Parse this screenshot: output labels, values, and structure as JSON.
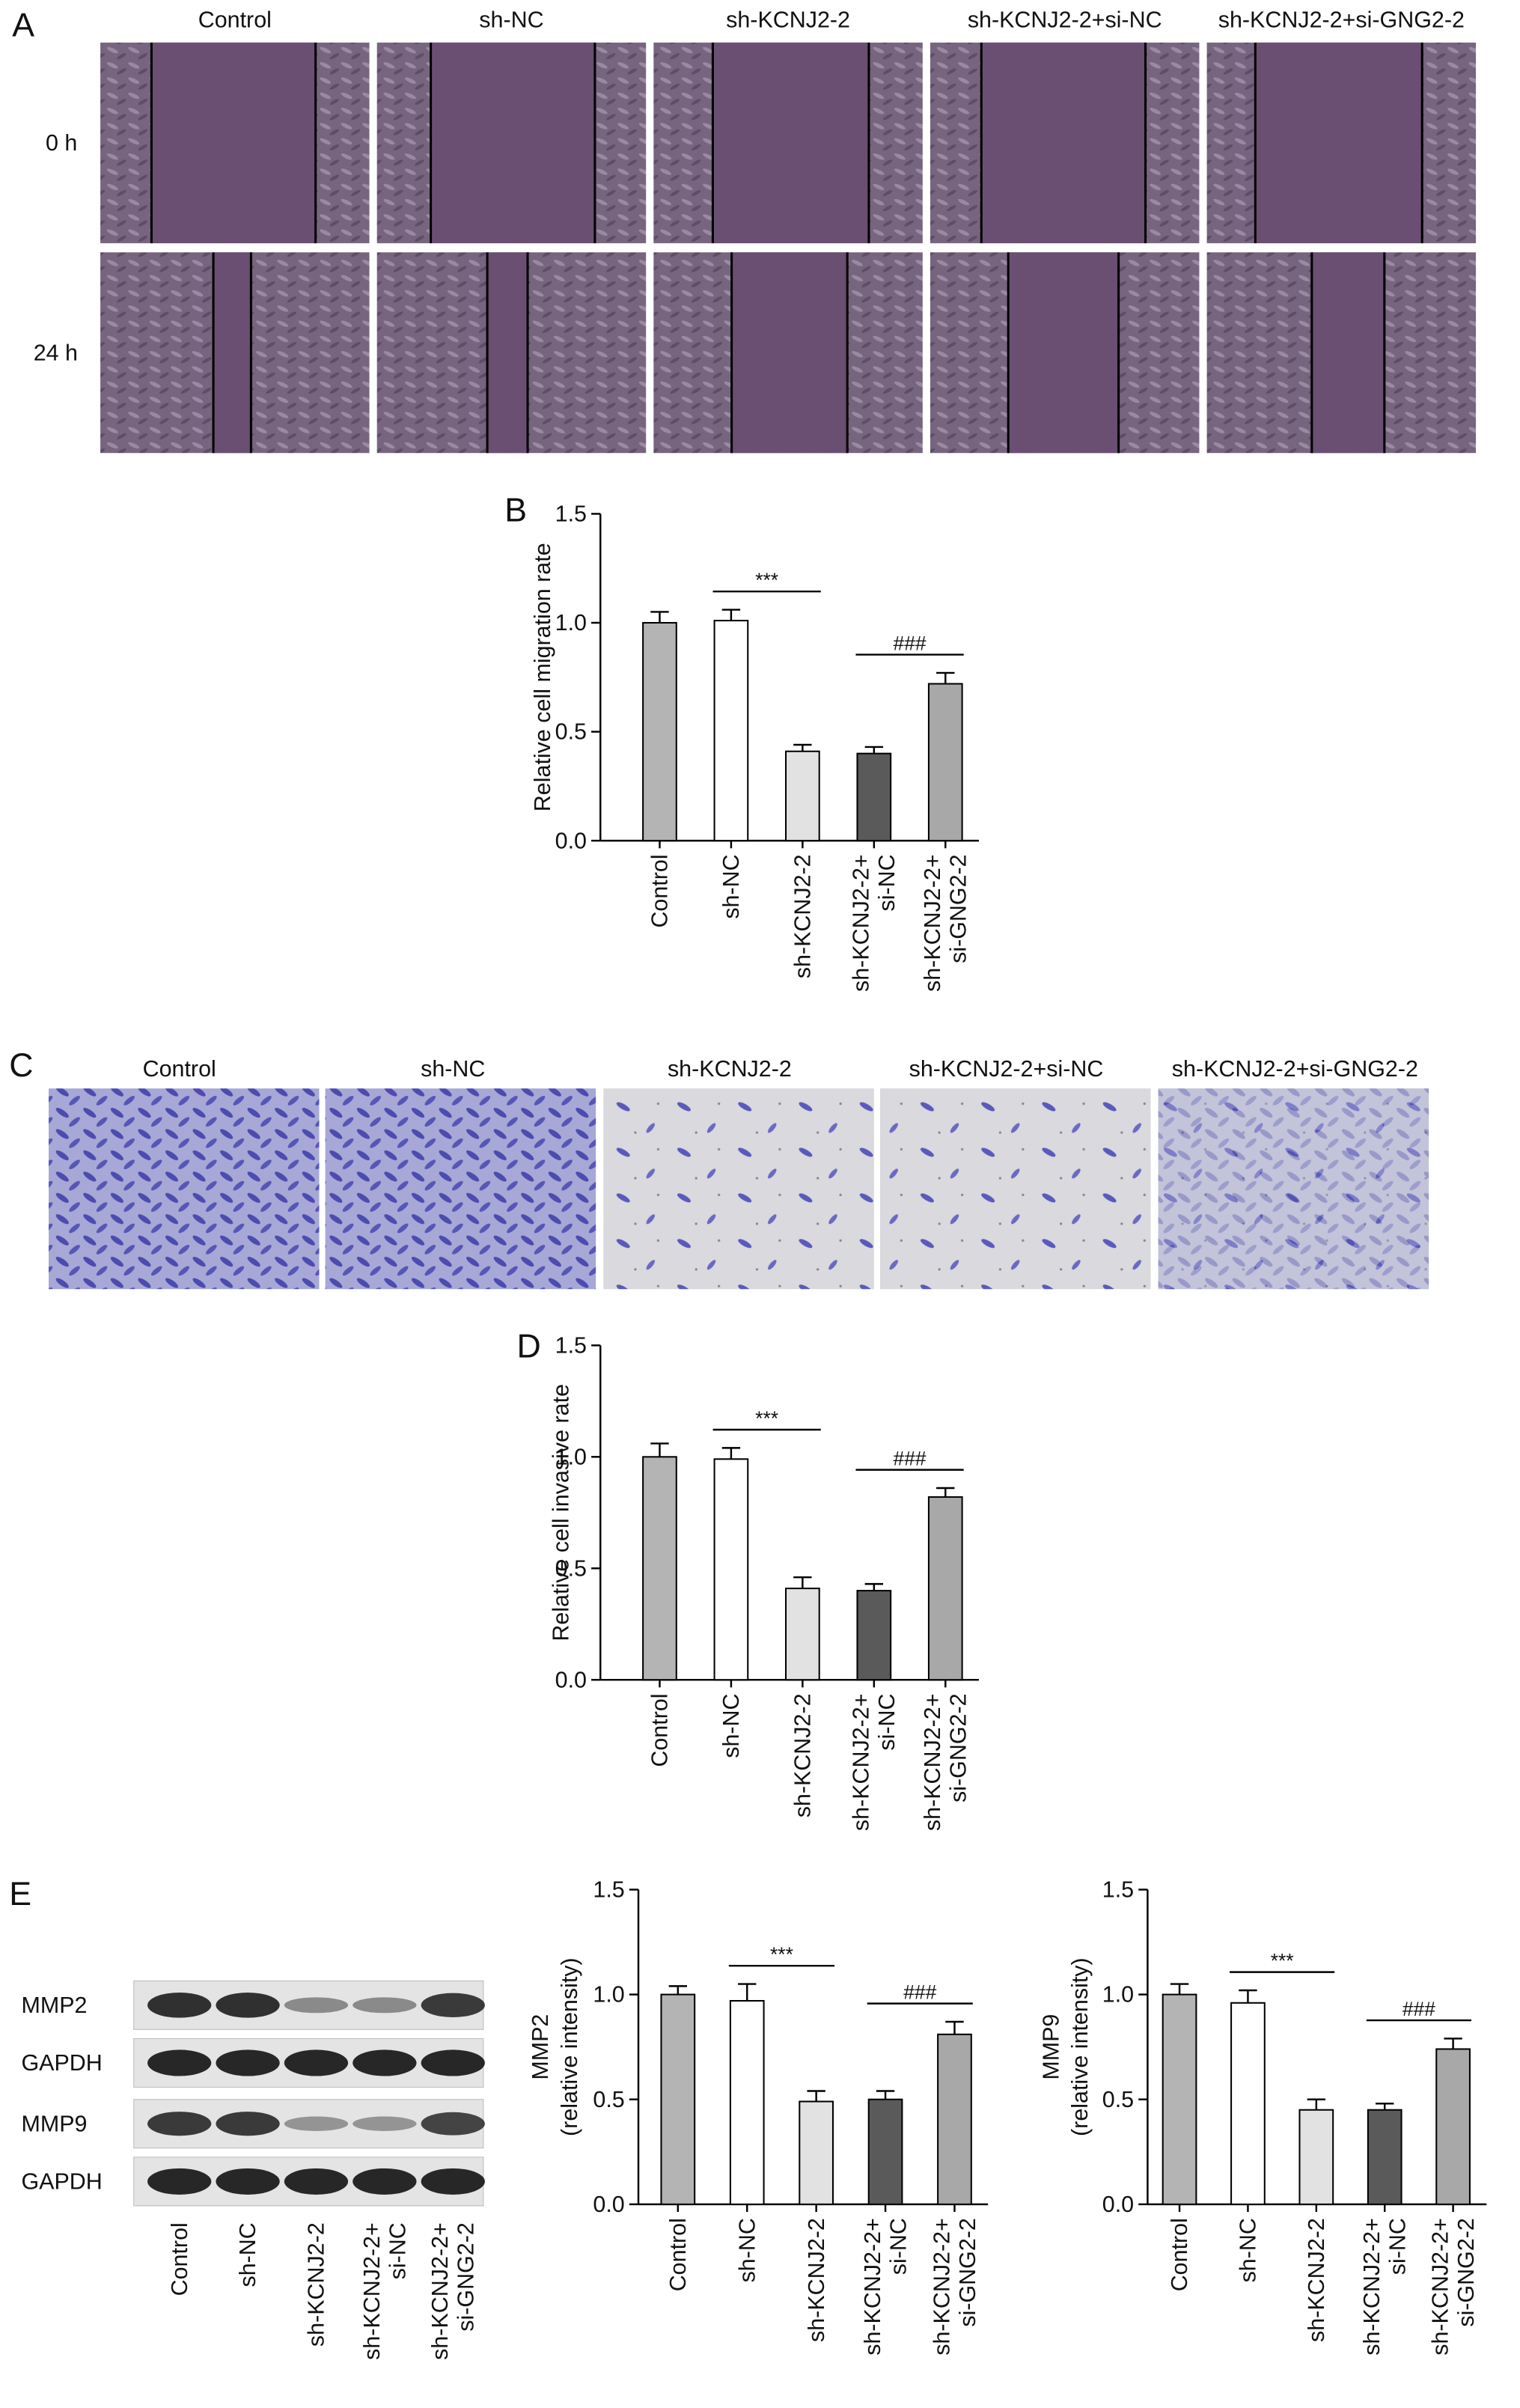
{
  "panel_labels": [
    "A",
    "B",
    "C",
    "D",
    "E"
  ],
  "migration_images": {
    "columns": [
      "Control",
      "sh-NC",
      "sh-KCNJ2-2",
      "sh-KCNJ2-2+si-NC",
      "sh-KCNJ2-2+si-GNG2-2"
    ],
    "rows": [
      "0 h",
      "24 h"
    ]
  },
  "invasion_images": {
    "columns": [
      "Control",
      "sh-NC",
      "sh-KCNJ2-2",
      "sh-KCNJ2-2+si-NC",
      "sh-KCNJ2-2+si-GNG2-2"
    ]
  },
  "western_blot": {
    "bands": [
      "MMP2",
      "GAPDH",
      "MMP9",
      "GAPDH"
    ],
    "lanes": [
      "Control",
      "sh-NC",
      "sh-KCNJ2-2",
      "sh-KCNJ2-2+\nsi-NC",
      "sh-KCNJ2-2+\nsi-GNG2-2"
    ]
  },
  "chart_data": [
    {
      "type": "bar",
      "y_label": "Relative cell migration rate",
      "categories": [
        "Control",
        "sh-NC",
        "sh-KCNJ2-2",
        "sh-KCNJ2-2+\nsi-NC",
        "sh-KCNJ2-2+\nsi-GNG2-2"
      ],
      "values": [
        1.0,
        1.01,
        0.41,
        0.4,
        0.72
      ],
      "errors": [
        0.05,
        0.05,
        0.03,
        0.03,
        0.05
      ],
      "colors": [
        "#b4b4b4",
        "#ffffff",
        "#e2e2e2",
        "#5a5a5a",
        "#a8a8a8"
      ],
      "ylim": [
        0,
        1.5
      ],
      "yticks": [
        {
          "value": 0,
          "label": "0.0"
        },
        0.5,
        {
          "value": 1,
          "label": "1.0"
        },
        1.5
      ],
      "annotations": [
        "***",
        "###"
      ]
    },
    {
      "type": "bar",
      "y_label": "Relative cell invasive rate",
      "categories": [
        "Control",
        "sh-NC",
        "sh-KCNJ2-2",
        "sh-KCNJ2-2+\nsi-NC",
        "sh-KCNJ2-2+\nsi-GNG2-2"
      ],
      "values": [
        1.0,
        0.99,
        0.41,
        0.4,
        0.82
      ],
      "errors": [
        0.06,
        0.05,
        0.05,
        0.03,
        0.04
      ],
      "colors": [
        "#b4b4b4",
        "#ffffff",
        "#e2e2e2",
        "#5a5a5a",
        "#a8a8a8"
      ],
      "ylim": [
        0,
        1.5
      ],
      "yticks": [
        {
          "value": 0,
          "label": "0.0"
        },
        0.5,
        {
          "value": 1,
          "label": "1.0"
        },
        1.5
      ],
      "annotations": [
        "***",
        "###"
      ]
    },
    {
      "type": "bar",
      "y_label": "MMP2\n(relative intensity)",
      "categories": [
        "Control",
        "sh-NC",
        "sh-KCNJ2-2",
        "sh-KCNJ2-2+\nsi-NC",
        "sh-KCNJ2-2+\nsi-GNG2-2"
      ],
      "values": [
        1.0,
        0.97,
        0.49,
        0.5,
        0.81
      ],
      "errors": [
        0.04,
        0.08,
        0.05,
        0.04,
        0.06
      ],
      "colors": [
        "#b4b4b4",
        "#ffffff",
        "#e2e2e2",
        "#5a5a5a",
        "#a8a8a8"
      ],
      "ylim": [
        0,
        1.5
      ],
      "yticks": [
        {
          "value": 0,
          "label": "0.0"
        },
        0.5,
        {
          "value": 1,
          "label": "1.0"
        },
        1.5
      ],
      "annotations": [
        "***",
        "###"
      ]
    },
    {
      "type": "bar",
      "y_label": "MMP9\n(relative intensity)",
      "categories": [
        "Control",
        "sh-NC",
        "sh-KCNJ2-2",
        "sh-KCNJ2-2+\nsi-NC",
        "sh-KCNJ2-2+\nsi-GNG2-2"
      ],
      "values": [
        1.0,
        0.96,
        0.45,
        0.45,
        0.74
      ],
      "errors": [
        0.05,
        0.06,
        0.05,
        0.03,
        0.05
      ],
      "colors": [
        "#b4b4b4",
        "#ffffff",
        "#e2e2e2",
        "#5a5a5a",
        "#a8a8a8"
      ],
      "ylim": [
        0,
        1.5
      ],
      "yticks": [
        {
          "value": 0,
          "label": "0.0"
        },
        0.5,
        {
          "value": 1,
          "label": "1.0"
        },
        1.5
      ],
      "annotations": [
        "***",
        "###"
      ]
    }
  ]
}
